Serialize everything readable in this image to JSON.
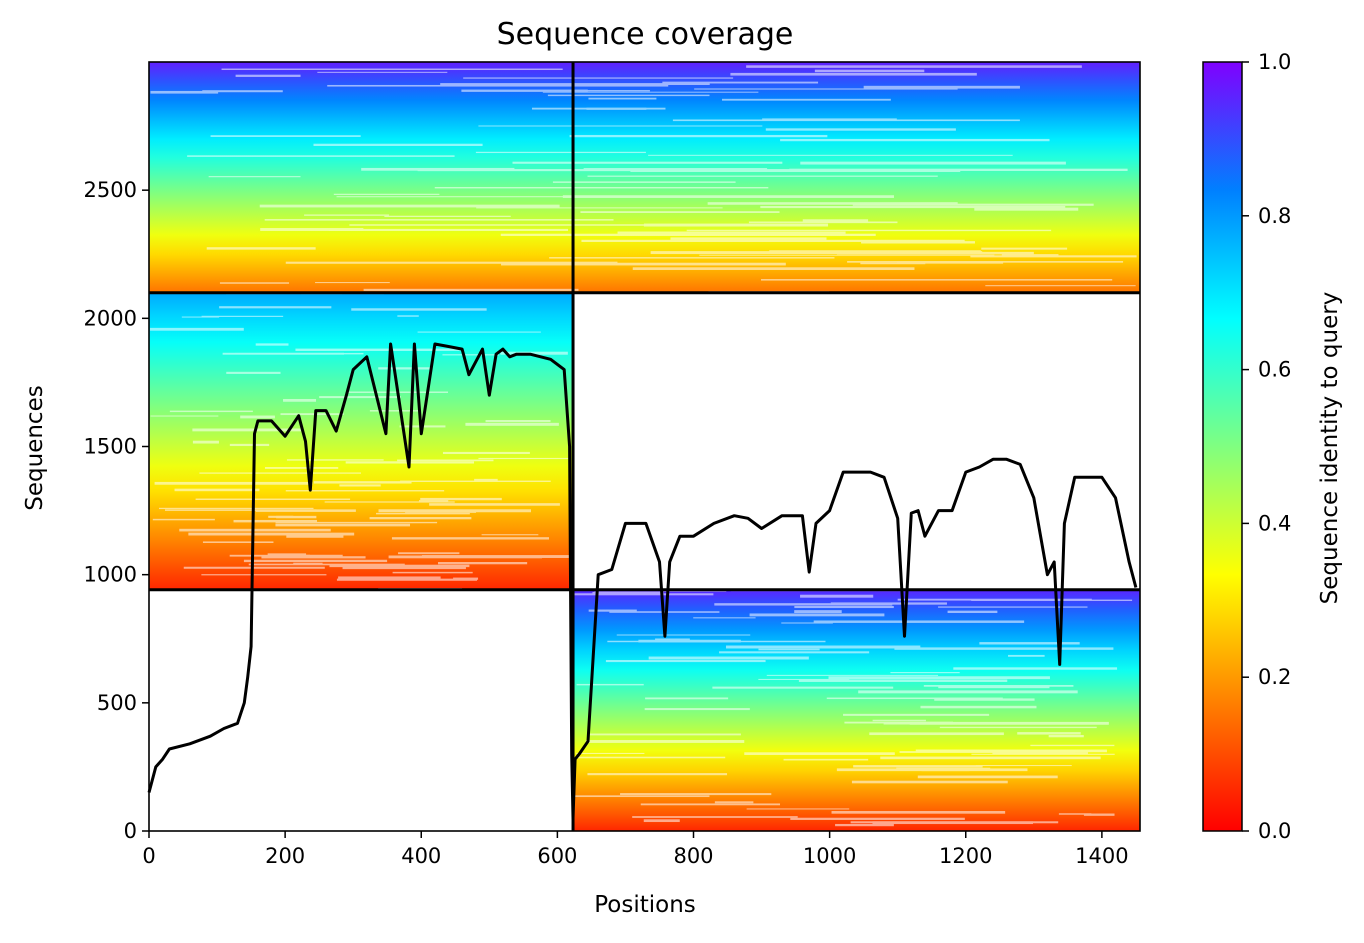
{
  "chart_data": {
    "type": "heatmap",
    "title": "Sequence coverage",
    "xlabel": "Positions",
    "ylabel": "Sequences",
    "xlim": [
      0,
      1456
    ],
    "ylim": [
      0,
      3000
    ],
    "x_ticks": [
      0,
      200,
      400,
      600,
      800,
      1000,
      1200,
      1400
    ],
    "y_ticks": [
      0,
      500,
      1000,
      1500,
      2000,
      2500
    ],
    "colorbar": {
      "label": "Sequence identity to query",
      "colormap": "rainbow (red = 0, violet = 1)",
      "range": [
        0,
        1
      ],
      "ticks": [
        "0.0",
        "0.2",
        "0.4",
        "0.6",
        "0.8",
        "1.0"
      ],
      "stops": [
        "#ff0000",
        "#ff8000",
        "#ffff00",
        "#80ff80",
        "#00ffff",
        "#0080ff",
        "#8000ff"
      ]
    },
    "domain_boundaries": {
      "vertical_x": [
        623
      ],
      "horizontal_y": [
        941,
        2100
      ]
    },
    "blocks": [
      {
        "name": "block-left-middle",
        "x0": 0,
        "x1": 623,
        "y0": 941,
        "y1": 2100,
        "identity_bottom": 0.05,
        "identity_top": 0.78
      },
      {
        "name": "block-top-full",
        "x0": 0,
        "x1": 1456,
        "y0": 2100,
        "y1": 3000,
        "identity_bottom": 0.15,
        "identity_top": 0.96
      },
      {
        "name": "block-right-bottom",
        "x0": 623,
        "x1": 1456,
        "y0": 0,
        "y1": 941,
        "identity_bottom": 0.05,
        "identity_top": 0.95
      }
    ],
    "coverage_series": {
      "name": "",
      "color": "#000000",
      "x": [
        0,
        10,
        20,
        30,
        60,
        90,
        110,
        130,
        140,
        145,
        150,
        155,
        160,
        180,
        200,
        220,
        230,
        237,
        245,
        260,
        275,
        290,
        300,
        320,
        348,
        355,
        382,
        390,
        400,
        420,
        440,
        460,
        470,
        490,
        500,
        510,
        520,
        530,
        540,
        560,
        590,
        610,
        618,
        621,
        623,
        626,
        632,
        645,
        660,
        680,
        700,
        730,
        750,
        758,
        765,
        780,
        800,
        830,
        860,
        880,
        900,
        930,
        960,
        970,
        980,
        1000,
        1020,
        1040,
        1060,
        1080,
        1100,
        1110,
        1120,
        1130,
        1140,
        1160,
        1180,
        1200,
        1220,
        1240,
        1260,
        1280,
        1300,
        1320,
        1330,
        1338,
        1345,
        1360,
        1380,
        1400,
        1420,
        1440,
        1450
      ],
      "y": [
        150,
        250,
        280,
        320,
        340,
        370,
        400,
        420,
        500,
        600,
        720,
        1550,
        1600,
        1600,
        1540,
        1620,
        1520,
        1330,
        1640,
        1640,
        1560,
        1700,
        1800,
        1850,
        1550,
        1900,
        1420,
        1900,
        1550,
        1900,
        1890,
        1880,
        1780,
        1880,
        1700,
        1860,
        1880,
        1850,
        1860,
        1860,
        1840,
        1800,
        1500,
        300,
        50,
        280,
        300,
        350,
        1000,
        1020,
        1200,
        1200,
        1050,
        760,
        1050,
        1150,
        1150,
        1200,
        1230,
        1220,
        1180,
        1230,
        1230,
        1010,
        1200,
        1250,
        1400,
        1400,
        1400,
        1380,
        1220,
        760,
        1240,
        1250,
        1150,
        1250,
        1250,
        1400,
        1420,
        1450,
        1450,
        1430,
        1300,
        1000,
        1050,
        650,
        1200,
        1380,
        1380,
        1380,
        1300,
        1050,
        950
      ]
    }
  }
}
